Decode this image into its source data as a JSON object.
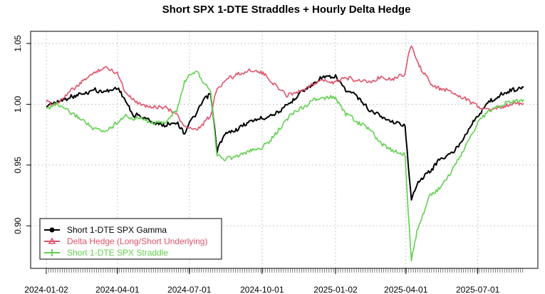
{
  "chart_data": {
    "type": "line",
    "title": "Short SPX 1-DTE Straddles + Hourly Delta Hedge",
    "xlabel": "",
    "ylabel": "",
    "x_tick_labels": [
      "2024-01-02",
      "2024-04-01",
      "2024-07-01",
      "2024-10-01",
      "2025-01-02",
      "2025-04-01",
      "2025-07-01"
    ],
    "x_range": [
      "2024-01-02",
      "2025-08-28"
    ],
    "ylim": [
      0.865,
      1.06
    ],
    "y_ticks": [
      "0.90",
      "0.95",
      "1.00",
      "1.05"
    ],
    "grid": true,
    "legend_position": "bottom-left",
    "series": [
      {
        "name": "Short 1-DTE SPX Gamma",
        "color": "#000000",
        "points": [
          [
            "2024-01-02",
            0.998
          ],
          [
            "2024-01-15",
            1.002
          ],
          [
            "2024-02-01",
            1.006
          ],
          [
            "2024-02-15",
            1.008
          ],
          [
            "2024-03-01",
            1.012
          ],
          [
            "2024-03-15",
            1.01
          ],
          [
            "2024-04-01",
            1.014
          ],
          [
            "2024-04-10",
            1.005
          ],
          [
            "2024-04-20",
            0.992
          ],
          [
            "2024-05-01",
            0.99
          ],
          [
            "2024-05-15",
            0.985
          ],
          [
            "2024-06-01",
            0.983
          ],
          [
            "2024-06-15",
            0.985
          ],
          [
            "2024-06-25",
            0.975
          ],
          [
            "2024-07-01",
            0.985
          ],
          [
            "2024-07-10",
            0.992
          ],
          [
            "2024-07-20",
            1.005
          ],
          [
            "2024-07-28",
            1.008
          ],
          [
            "2024-08-02",
            0.98
          ],
          [
            "2024-08-05",
            0.962
          ],
          [
            "2024-08-15",
            0.975
          ],
          [
            "2024-09-01",
            0.98
          ],
          [
            "2024-09-15",
            0.985
          ],
          [
            "2024-10-01",
            0.988
          ],
          [
            "2024-10-15",
            0.992
          ],
          [
            "2024-11-01",
            0.998
          ],
          [
            "2024-11-15",
            1.008
          ],
          [
            "2024-12-01",
            1.015
          ],
          [
            "2024-12-15",
            1.022
          ],
          [
            "2025-01-02",
            1.022
          ],
          [
            "2025-01-15",
            1.012
          ],
          [
            "2025-02-01",
            1.005
          ],
          [
            "2025-02-15",
            0.995
          ],
          [
            "2025-03-01",
            0.99
          ],
          [
            "2025-03-15",
            0.985
          ],
          [
            "2025-03-31",
            0.982
          ],
          [
            "2025-04-04",
            0.95
          ],
          [
            "2025-04-08",
            0.92
          ],
          [
            "2025-04-15",
            0.935
          ],
          [
            "2025-05-01",
            0.945
          ],
          [
            "2025-05-15",
            0.955
          ],
          [
            "2025-06-01",
            0.962
          ],
          [
            "2025-06-15",
            0.975
          ],
          [
            "2025-07-01",
            0.99
          ],
          [
            "2025-07-15",
            1.002
          ],
          [
            "2025-08-01",
            1.008
          ],
          [
            "2025-08-15",
            1.012
          ],
          [
            "2025-08-28",
            1.014
          ]
        ]
      },
      {
        "name": "Delta Hedge (Long/Short Underlying)",
        "color": "#df536b",
        "points": [
          [
            "2024-01-02",
            1.002
          ],
          [
            "2024-01-15",
            1.0
          ],
          [
            "2024-02-01",
            1.01
          ],
          [
            "2024-02-15",
            1.018
          ],
          [
            "2024-03-01",
            1.025
          ],
          [
            "2024-03-15",
            1.03
          ],
          [
            "2024-04-01",
            1.026
          ],
          [
            "2024-04-10",
            1.012
          ],
          [
            "2024-04-20",
            1.005
          ],
          [
            "2024-05-01",
            1.0
          ],
          [
            "2024-05-15",
            0.998
          ],
          [
            "2024-06-01",
            0.998
          ],
          [
            "2024-06-15",
            0.992
          ],
          [
            "2024-06-25",
            0.982
          ],
          [
            "2024-07-01",
            0.98
          ],
          [
            "2024-07-10",
            0.978
          ],
          [
            "2024-07-20",
            0.985
          ],
          [
            "2024-07-28",
            0.99
          ],
          [
            "2024-08-02",
            1.005
          ],
          [
            "2024-08-05",
            1.012
          ],
          [
            "2024-08-15",
            1.02
          ],
          [
            "2024-09-01",
            1.025
          ],
          [
            "2024-09-15",
            1.028
          ],
          [
            "2024-10-01",
            1.026
          ],
          [
            "2024-10-15",
            1.018
          ],
          [
            "2024-11-01",
            1.008
          ],
          [
            "2024-11-15",
            1.01
          ],
          [
            "2024-12-01",
            1.015
          ],
          [
            "2024-12-15",
            1.02
          ],
          [
            "2025-01-02",
            1.018
          ],
          [
            "2025-01-15",
            1.022
          ],
          [
            "2025-02-01",
            1.02
          ],
          [
            "2025-02-15",
            1.018
          ],
          [
            "2025-03-01",
            1.022
          ],
          [
            "2025-03-15",
            1.02
          ],
          [
            "2025-03-31",
            1.025
          ],
          [
            "2025-04-04",
            1.04
          ],
          [
            "2025-04-08",
            1.048
          ],
          [
            "2025-04-15",
            1.035
          ],
          [
            "2025-05-01",
            1.018
          ],
          [
            "2025-05-15",
            1.012
          ],
          [
            "2025-06-01",
            1.01
          ],
          [
            "2025-06-15",
            1.005
          ],
          [
            "2025-07-01",
            0.998
          ],
          [
            "2025-07-15",
            0.995
          ],
          [
            "2025-08-01",
            0.998
          ],
          [
            "2025-08-15",
            1.0
          ],
          [
            "2025-08-28",
            1.001
          ]
        ]
      },
      {
        "name": "Short 1-DTE SPX Straddle",
        "color": "#61d04f",
        "points": [
          [
            "2024-01-02",
            0.997
          ],
          [
            "2024-01-15",
            1.0
          ],
          [
            "2024-02-01",
            0.993
          ],
          [
            "2024-02-15",
            0.988
          ],
          [
            "2024-03-01",
            0.98
          ],
          [
            "2024-03-15",
            0.978
          ],
          [
            "2024-04-01",
            0.985
          ],
          [
            "2024-04-10",
            0.99
          ],
          [
            "2024-04-20",
            0.988
          ],
          [
            "2024-05-01",
            0.988
          ],
          [
            "2024-05-15",
            0.985
          ],
          [
            "2024-06-01",
            0.985
          ],
          [
            "2024-06-15",
            0.995
          ],
          [
            "2024-06-25",
            1.018
          ],
          [
            "2024-07-01",
            1.025
          ],
          [
            "2024-07-10",
            1.028
          ],
          [
            "2024-07-20",
            1.018
          ],
          [
            "2024-07-28",
            1.012
          ],
          [
            "2024-08-02",
            0.978
          ],
          [
            "2024-08-05",
            0.958
          ],
          [
            "2024-08-15",
            0.955
          ],
          [
            "2024-09-01",
            0.958
          ],
          [
            "2024-09-15",
            0.962
          ],
          [
            "2024-10-01",
            0.965
          ],
          [
            "2024-10-15",
            0.972
          ],
          [
            "2024-11-01",
            0.988
          ],
          [
            "2024-11-15",
            0.995
          ],
          [
            "2024-12-01",
            1.002
          ],
          [
            "2024-12-15",
            1.005
          ],
          [
            "2025-01-02",
            1.005
          ],
          [
            "2025-01-15",
            0.992
          ],
          [
            "2025-02-01",
            0.985
          ],
          [
            "2025-02-15",
            0.978
          ],
          [
            "2025-03-01",
            0.968
          ],
          [
            "2025-03-15",
            0.962
          ],
          [
            "2025-03-31",
            0.958
          ],
          [
            "2025-04-04",
            0.912
          ],
          [
            "2025-04-08",
            0.872
          ],
          [
            "2025-04-15",
            0.895
          ],
          [
            "2025-05-01",
            0.925
          ],
          [
            "2025-05-15",
            0.932
          ],
          [
            "2025-06-01",
            0.948
          ],
          [
            "2025-06-15",
            0.965
          ],
          [
            "2025-07-01",
            0.985
          ],
          [
            "2025-07-15",
            0.995
          ],
          [
            "2025-08-01",
            1.0
          ],
          [
            "2025-08-15",
            1.003
          ],
          [
            "2025-08-28",
            1.004
          ]
        ]
      }
    ]
  }
}
